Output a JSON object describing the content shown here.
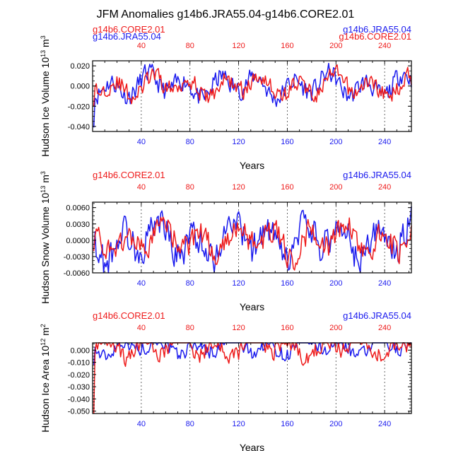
{
  "title": "JFM Anomalies g14b6.JRA55.04-g14b6.CORE2.01",
  "colors": {
    "jra": "#1a1aee",
    "core": "#ee1a1a",
    "axis": "#000000",
    "grid": "#444444"
  },
  "chart_data": [
    {
      "type": "line",
      "ylabel": "Hudson Ice Volume",
      "yunits": "10^13 m^3",
      "unit_base": "10",
      "unit_exp": "13",
      "unit_name": "m",
      "unit_exp2": "3",
      "xlabel": "Years",
      "xlim": [
        0,
        262
      ],
      "ylim": [
        -0.045,
        0.025
      ],
      "yticks": [
        0.02,
        0.0,
        -0.02,
        -0.04
      ],
      "yticklabels": [
        "0.020",
        "0.000",
        "-0.020",
        "-0.040"
      ],
      "xticks": [
        40,
        80,
        120,
        160,
        200,
        240
      ],
      "xticklabels": [
        "40",
        "80",
        "120",
        "160",
        "200",
        "240"
      ],
      "legend_left": "g14b6.CORE2.01",
      "legend_right": "g14b6.JRA55.04",
      "legend_overlap": true,
      "series": [
        {
          "name": "g14b6.JRA55.04",
          "color": "#1a1aee",
          "amplitude": 0.019,
          "offset": 0.0,
          "min_start": -0.041,
          "seed": 11
        },
        {
          "name": "g14b6.CORE2.01",
          "color": "#ee1a1a",
          "amplitude": 0.017,
          "offset": 0.0,
          "min_start": -0.02,
          "seed": 29
        }
      ]
    },
    {
      "type": "line",
      "ylabel": "Hudson Snow Volume",
      "yunits": "10^13 m^3",
      "unit_base": "10",
      "unit_exp": "13",
      "unit_name": "m",
      "unit_exp2": "3",
      "xlabel": "Years",
      "xlim": [
        0,
        262
      ],
      "ylim": [
        -0.006,
        0.007
      ],
      "yticks": [
        0.006,
        0.003,
        0.0,
        -0.003,
        -0.006
      ],
      "yticklabels": [
        "0.0060",
        "0.0030",
        "0.0000",
        "-0.0030",
        "-0.0060"
      ],
      "xticks": [
        40,
        80,
        120,
        160,
        200,
        240
      ],
      "xticklabels": [
        "40",
        "80",
        "120",
        "160",
        "200",
        "240"
      ],
      "legend_left": "g14b6.CORE2.01",
      "legend_right": "g14b6.JRA55.04",
      "legend_overlap": false,
      "series": [
        {
          "name": "g14b6.JRA55.04",
          "color": "#1a1aee",
          "amplitude": 0.0058,
          "offset": 0.0,
          "min_start": -0.002,
          "seed": 53
        },
        {
          "name": "g14b6.CORE2.01",
          "color": "#ee1a1a",
          "amplitude": 0.0045,
          "offset": 0.0,
          "min_start": -0.002,
          "seed": 71
        }
      ]
    },
    {
      "type": "line",
      "ylabel": "Hudson Ice Area",
      "yunits": "10^12 m^2",
      "unit_base": "10",
      "unit_exp": "12",
      "unit_name": "m",
      "unit_exp2": "2",
      "xlabel": "Years",
      "xlim": [
        0,
        262
      ],
      "ylim": [
        -0.052,
        0.006
      ],
      "yticks": [
        0.0,
        -0.01,
        -0.02,
        -0.03,
        -0.04,
        -0.05
      ],
      "yticklabels": [
        "0.000",
        "-0.010",
        "-0.020",
        "-0.030",
        "-0.040",
        "-0.050"
      ],
      "xticks": [
        40,
        80,
        120,
        160,
        200,
        240
      ],
      "xticklabels": [
        "40",
        "80",
        "120",
        "160",
        "200",
        "240"
      ],
      "legend_left": "g14b6.CORE2.01",
      "legend_right": "g14b6.JRA55.04",
      "legend_overlap": false,
      "series": [
        {
          "name": "g14b6.JRA55.04",
          "color": "#1a1aee",
          "amplitude": 0.012,
          "offset": 0.003,
          "min_start": -0.012,
          "seed": 97
        },
        {
          "name": "g14b6.CORE2.01",
          "color": "#ee1a1a",
          "amplitude": 0.014,
          "offset": 0.003,
          "min_start": -0.052,
          "seed": 131
        }
      ]
    }
  ]
}
